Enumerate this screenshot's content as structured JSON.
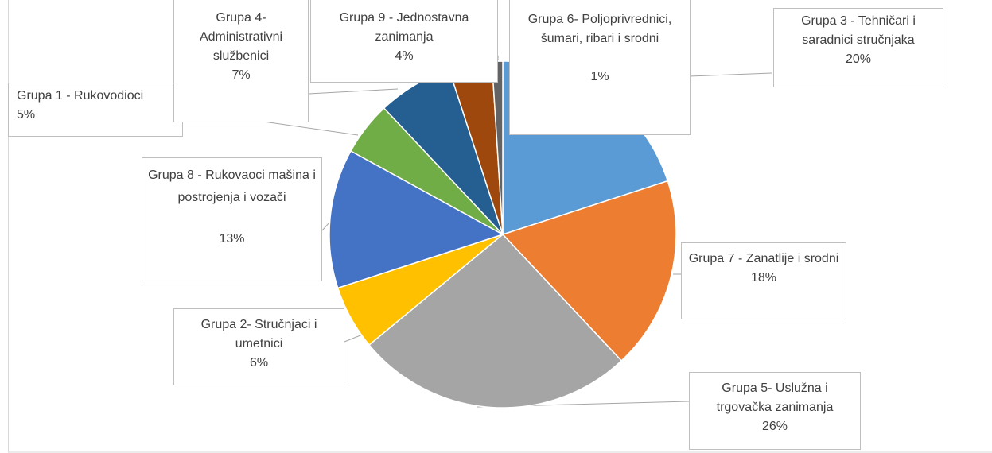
{
  "chart_data": {
    "type": "pie",
    "categories": [
      "Grupa 3 - Tehničari i saradnici stručnjaka",
      "Grupa 7 - Zanatlije i srodni",
      "Grupa 5- Uslužna i trgovačka zanimanja",
      "Grupa 2- Stručnjaci i umetnici",
      "Grupa 8 - Rukovaoci mašina i postrojenja i vozači",
      "Grupa 1 - Rukovodioci",
      "Grupa 4- Administrativni službenici",
      "Grupa 9 - Jednostavna zanimanja",
      "Grupa 6- Poljoprivrednici, šumari, ribari i srodni"
    ],
    "values": [
      20,
      18,
      26,
      6,
      13,
      5,
      7,
      4,
      1
    ],
    "value_labels": [
      "20%",
      "18%",
      "26%",
      "6%",
      "13%",
      "5%",
      "7%",
      "4%",
      "1%"
    ],
    "colors": [
      "#5b9bd5",
      "#ed7d31",
      "#a5a5a5",
      "#ffc000",
      "#4472c4",
      "#70ad47",
      "#255e91",
      "#9e480e",
      "#636363"
    ]
  }
}
